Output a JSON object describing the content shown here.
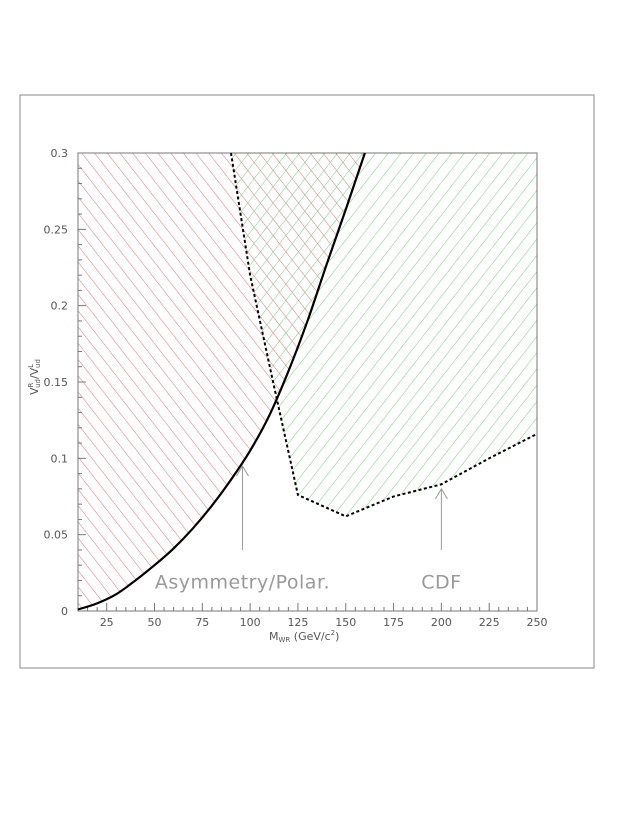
{
  "chart_data": {
    "type": "area",
    "xlabel": {
      "main": "M",
      "sub": "WR",
      "rest_before_sup": " (GeV/c",
      "sup": "2",
      "rest_after_sup": ")"
    },
    "ylabel": {
      "v1": "V",
      "sup1": "R",
      "sub1": "ud",
      "slash": "/",
      "v2": "V",
      "sup2": "L",
      "sub2": "ud"
    },
    "xlim": [
      10,
      250
    ],
    "ylim": [
      0,
      0.3
    ],
    "x_ticks": [
      25,
      50,
      75,
      100,
      125,
      150,
      175,
      200,
      225,
      250
    ],
    "y_ticks": [
      0,
      0.05,
      0.1,
      0.15,
      0.2,
      0.25,
      0.3
    ],
    "x_tick_labels": [
      "25",
      "50",
      "75",
      "100",
      "125",
      "150",
      "175",
      "200",
      "225",
      "250"
    ],
    "y_tick_labels": [
      "0",
      "0.05",
      "0.1",
      "0.15",
      "0.2",
      "0.25",
      "0.3"
    ],
    "series": [
      {
        "name": "Asymmetry/Polar.",
        "style": "solid",
        "color": "#000000",
        "fill_color": "#e05a5a",
        "x": [
          10,
          20,
          30,
          40,
          50,
          60,
          70,
          80,
          90,
          100,
          110,
          120,
          130,
          140,
          150,
          160
        ],
        "y": [
          0.001,
          0.005,
          0.011,
          0.02,
          0.03,
          0.041,
          0.054,
          0.069,
          0.086,
          0.105,
          0.128,
          0.157,
          0.19,
          0.227,
          0.263,
          0.3
        ]
      },
      {
        "name": "CDF",
        "style": "dashed",
        "color": "#000000",
        "fill_color": "#5ad45a",
        "x": [
          90,
          100,
          112,
          125,
          150,
          175,
          200,
          225,
          250
        ],
        "y": [
          0.3,
          0.22,
          0.15,
          0.076,
          0.062,
          0.075,
          0.083,
          0.1,
          0.116
        ]
      }
    ],
    "annotations": [
      {
        "text": "Asymmetry/Polar.",
        "arrow_to": [
          96,
          0.095
        ],
        "text_at": [
          96,
          0.02
        ]
      },
      {
        "text": "CDF",
        "arrow_to": [
          200,
          0.08
        ],
        "text_at": [
          200,
          0.02
        ]
      }
    ]
  }
}
